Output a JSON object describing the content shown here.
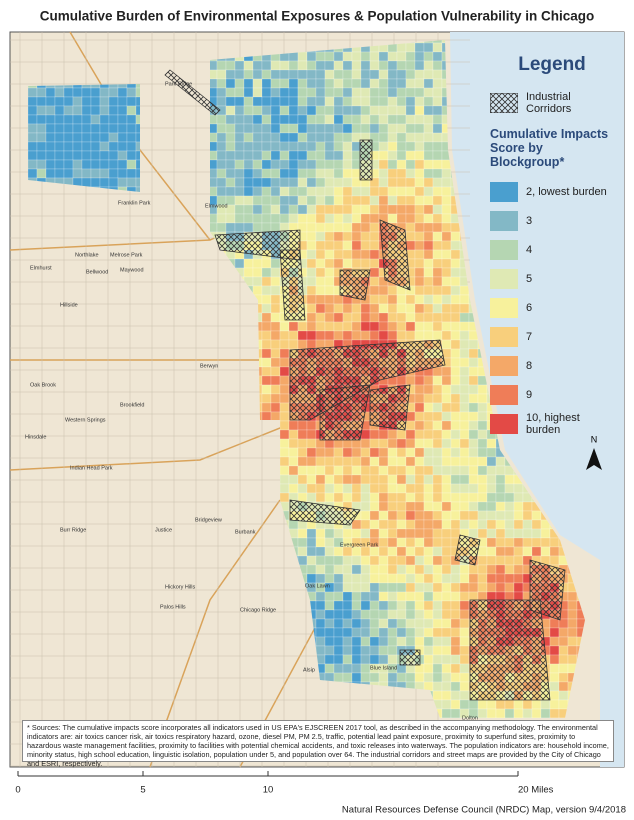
{
  "header": {
    "title": "Cumulative Burden of Environmental Exposures & Population Vulnerability in Chicago"
  },
  "legend": {
    "title": "Legend",
    "corridor_label": "Industrial Corridors",
    "score_title": "Cumulative Impacts Score by Blockgroup*",
    "items": [
      {
        "label": "2, lowest burden",
        "color": "#4a9fcf"
      },
      {
        "label": "3",
        "color": "#83b8c6"
      },
      {
        "label": "4",
        "color": "#b5d6b2"
      },
      {
        "label": "5",
        "color": "#dfe9b4"
      },
      {
        "label": "6",
        "color": "#f7f19c"
      },
      {
        "label": "7",
        "color": "#f8cf7c"
      },
      {
        "label": "8",
        "color": "#f4a868"
      },
      {
        "label": "9",
        "color": "#ef7d58"
      },
      {
        "label": "10, highest burden",
        "color": "#e34a46"
      }
    ]
  },
  "north_arrow": "N",
  "place_labels": [
    {
      "label": "Park Ridge"
    },
    {
      "label": "Franklin Park"
    },
    {
      "label": "Elmwood"
    },
    {
      "label": "Northlake"
    },
    {
      "label": "Melrose Park"
    },
    {
      "label": "Elmhurst"
    },
    {
      "label": "Bellwood"
    },
    {
      "label": "Maywood"
    },
    {
      "label": "Hillside"
    },
    {
      "label": "Berwyn"
    },
    {
      "label": "Oak Brook"
    },
    {
      "label": "Brookfield"
    },
    {
      "label": "Western Springs"
    },
    {
      "label": "Hinsdale"
    },
    {
      "label": "Indian Head Park"
    },
    {
      "label": "Burr Ridge"
    },
    {
      "label": "Justice"
    },
    {
      "label": "Bridgeview"
    },
    {
      "label": "Burbank"
    },
    {
      "label": "Hickory Hills"
    },
    {
      "label": "Palos Hills"
    },
    {
      "label": "Chicago Ridge"
    },
    {
      "label": "Oak Lawn"
    },
    {
      "label": "Evergreen Park"
    },
    {
      "label": "Alsip"
    },
    {
      "label": "Blue Island"
    },
    {
      "label": "Dolton"
    }
  ],
  "source_note": "* Sources: The cumulative impacts score incorporates all indicators used in US EPA's EJSCREEN 2017 tool, as described in the accompanying methodology. The environmental indicators are: air toxics cancer risk, air toxics respiratory hazard, ozone, diesel PM, PM 2.5, traffic, potential lead paint exposure, proximity to superfund sites, proximity to hazardous waste management facilities, proximity to facilities with potential chemical accidents, and toxic releases into waterways. The population indicators are: household income, minority status, high school education, linguistic isolation, population under 5, and population over 64. The industrial corridors and street maps are provided by the City of Chicago and ESRI, respectively.",
  "scale_bar": {
    "ticks": [
      0,
      5,
      10,
      {
        "value": 20,
        "label": "20 Miles"
      }
    ]
  },
  "credit": "Natural Resources Defense Council (NRDC) Map, version 9/4/2018"
}
